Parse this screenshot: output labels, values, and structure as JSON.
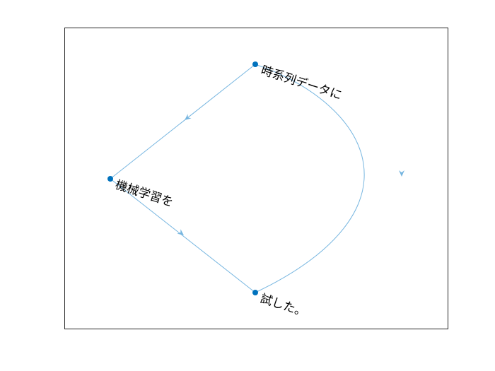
{
  "graph": {
    "type": "directed-graph",
    "nodes": [
      {
        "id": "n1",
        "label": "時系列データに"
      },
      {
        "id": "n2",
        "label": "機械学習を"
      },
      {
        "id": "n3",
        "label": "試した。"
      }
    ],
    "edges": [
      {
        "from": "n1",
        "to": "n2"
      },
      {
        "from": "n2",
        "to": "n3"
      },
      {
        "from": "n1",
        "to": "n3"
      }
    ],
    "colors": {
      "edge": "#77b6e0",
      "node": "#0072bd",
      "axes": "#262626",
      "label": "#000000"
    }
  }
}
